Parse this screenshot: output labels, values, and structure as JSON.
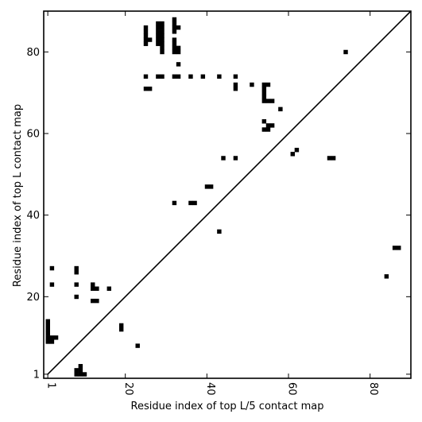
{
  "chart_data": {
    "type": "scatter",
    "xlabel": "Residue index of top L/5 contact map",
    "ylabel": "Residue index of top L contact map",
    "xlim": [
      0,
      90
    ],
    "ylim": [
      0,
      90
    ],
    "x_ticks": [
      1,
      20,
      40,
      60,
      80
    ],
    "y_ticks": [
      1,
      20,
      40,
      60,
      80
    ],
    "diagonal": true,
    "grid": false,
    "marker_color": "#000000",
    "points": [
      [
        1,
        9
      ],
      [
        1,
        10
      ],
      [
        1,
        11
      ],
      [
        1,
        12
      ],
      [
        1,
        13
      ],
      [
        1,
        14
      ],
      [
        2,
        9
      ],
      [
        2,
        10
      ],
      [
        3,
        10
      ],
      [
        8,
        1
      ],
      [
        8,
        2
      ],
      [
        9,
        1
      ],
      [
        9,
        2
      ],
      [
        9,
        3
      ],
      [
        10,
        1
      ],
      [
        8,
        20
      ],
      [
        8,
        23
      ],
      [
        8,
        26
      ],
      [
        8,
        27
      ],
      [
        2,
        23
      ],
      [
        2,
        27
      ],
      [
        12,
        19
      ],
      [
        13,
        19
      ],
      [
        12,
        22
      ],
      [
        13,
        22
      ],
      [
        12,
        23
      ],
      [
        16,
        22
      ],
      [
        19,
        12
      ],
      [
        19,
        13
      ],
      [
        23,
        8
      ],
      [
        25,
        71
      ],
      [
        26,
        71
      ],
      [
        25,
        74
      ],
      [
        25,
        82
      ],
      [
        25,
        83
      ],
      [
        25,
        84
      ],
      [
        25,
        85
      ],
      [
        25,
        86
      ],
      [
        26,
        83
      ],
      [
        28,
        82
      ],
      [
        28,
        83
      ],
      [
        28,
        84
      ],
      [
        28,
        85
      ],
      [
        28,
        86
      ],
      [
        28,
        87
      ],
      [
        29,
        80
      ],
      [
        29,
        81
      ],
      [
        29,
        82
      ],
      [
        29,
        83
      ],
      [
        29,
        84
      ],
      [
        29,
        85
      ],
      [
        29,
        86
      ],
      [
        29,
        87
      ],
      [
        28,
        74
      ],
      [
        29,
        74
      ],
      [
        32,
        80
      ],
      [
        32,
        81
      ],
      [
        32,
        82
      ],
      [
        32,
        83
      ],
      [
        32,
        85
      ],
      [
        32,
        86
      ],
      [
        32,
        87
      ],
      [
        32,
        88
      ],
      [
        33,
        80
      ],
      [
        33,
        81
      ],
      [
        33,
        86
      ],
      [
        33,
        77
      ],
      [
        32,
        74
      ],
      [
        33,
        74
      ],
      [
        36,
        74
      ],
      [
        39,
        74
      ],
      [
        43,
        74
      ],
      [
        47,
        74
      ],
      [
        47,
        71
      ],
      [
        47,
        72
      ],
      [
        51,
        72
      ],
      [
        54,
        68
      ],
      [
        54,
        69
      ],
      [
        54,
        70
      ],
      [
        54,
        71
      ],
      [
        54,
        72
      ],
      [
        55,
        68
      ],
      [
        55,
        72
      ],
      [
        56,
        68
      ],
      [
        58,
        66
      ],
      [
        54,
        63
      ],
      [
        54,
        61
      ],
      [
        55,
        61
      ],
      [
        55,
        62
      ],
      [
        56,
        62
      ],
      [
        61,
        55
      ],
      [
        62,
        56
      ],
      [
        44,
        54
      ],
      [
        47,
        54
      ],
      [
        70,
        54
      ],
      [
        71,
        54
      ],
      [
        74,
        80
      ],
      [
        40,
        47
      ],
      [
        41,
        47
      ],
      [
        36,
        43
      ],
      [
        37,
        43
      ],
      [
        32,
        43
      ],
      [
        43,
        36
      ],
      [
        84,
        25
      ],
      [
        86,
        32
      ],
      [
        87,
        32
      ]
    ]
  }
}
